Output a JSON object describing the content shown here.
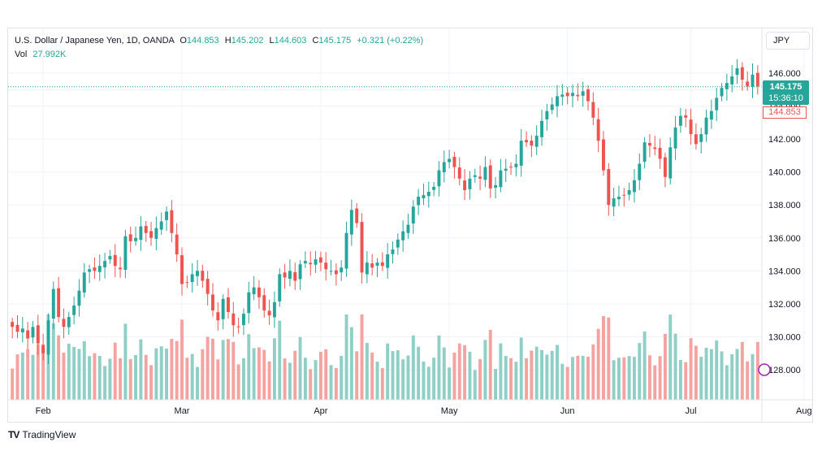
{
  "header": {
    "symbol": "U.S. Dollar / Japanese Yen, 1D, OANDA",
    "o_label": "O",
    "o_value": "144.853",
    "h_label": "H",
    "h_value": "145.202",
    "l_label": "L",
    "l_value": "144.603",
    "c_label": "C",
    "c_value": "145.175",
    "change": "+0.321 (+0.22%)",
    "vol_label": "Vol",
    "vol_value": "27.992K"
  },
  "currency": "JPY",
  "price_tag": {
    "price": "145.175",
    "countdown": "15:36:10"
  },
  "open_tag": "144.853",
  "branding": "TradingView",
  "colors": {
    "up": "#26a69a",
    "down": "#ef5350",
    "up_volume": "#8fcfc6",
    "down_volume": "#f4a3a0"
  },
  "chart_data": {
    "type": "candlestick",
    "y_ticks": [
      "146.000",
      "144.000",
      "142.000",
      "140.000",
      "138.000",
      "136.000",
      "134.000",
      "132.000",
      "130.000",
      "128.000"
    ],
    "x_ticks": [
      "Feb",
      "Mar",
      "Apr",
      "May",
      "Jun",
      "Jul",
      "Aug"
    ],
    "ylim": [
      126.2,
      146.8
    ],
    "current_price": 145.175,
    "closes": [
      130.6,
      130.3,
      130.5,
      129.9,
      130.6,
      129.6,
      129.0,
      131.0,
      132.9,
      131.2,
      130.6,
      131.2,
      131.9,
      132.8,
      133.9,
      134.1,
      134.0,
      134.3,
      134.6,
      134.9,
      134.3,
      134.1,
      136.1,
      135.8,
      136.0,
      136.7,
      136.3,
      136.0,
      136.6,
      137.0,
      137.6,
      136.3,
      135.0,
      133.2,
      133.3,
      133.8,
      134.0,
      133.4,
      132.6,
      131.6,
      131.0,
      132.3,
      131.5,
      130.7,
      130.6,
      131.4,
      132.7,
      133.0,
      132.4,
      131.6,
      131.3,
      132.1,
      133.8,
      133.6,
      134.0,
      133.4,
      134.4,
      134.6,
      134.4,
      134.7,
      134.5,
      134.1,
      134.0,
      133.8,
      134.2,
      136.3,
      137.7,
      136.9,
      133.9,
      134.5,
      134.2,
      134.5,
      134.3,
      135.0,
      135.3,
      135.9,
      136.4,
      136.8,
      137.9,
      138.5,
      138.6,
      138.8,
      139.1,
      140.1,
      140.6,
      140.8,
      140.3,
      139.6,
      138.9,
      139.6,
      139.8,
      139.6,
      140.3,
      139.0,
      139.2,
      140.1,
      140.2,
      140.3,
      140.5,
      141.9,
      141.8,
      141.6,
      142.2,
      143.1,
      143.7,
      144.1,
      144.6,
      144.7,
      144.6,
      144.8,
      144.6,
      144.9,
      144.3,
      143.3,
      141.9,
      140.1,
      138.0,
      138.4,
      138.5,
      138.6,
      138.9,
      139.5,
      140.5,
      141.8,
      141.6,
      141.4,
      140.8,
      139.7,
      141.5,
      142.7,
      143.4,
      143.3,
      142.3,
      141.7,
      142.3,
      143.3,
      143.7,
      144.5,
      145.1,
      145.4,
      145.8,
      146.3,
      145.6,
      145.2,
      145.9,
      145.2
    ]
  }
}
